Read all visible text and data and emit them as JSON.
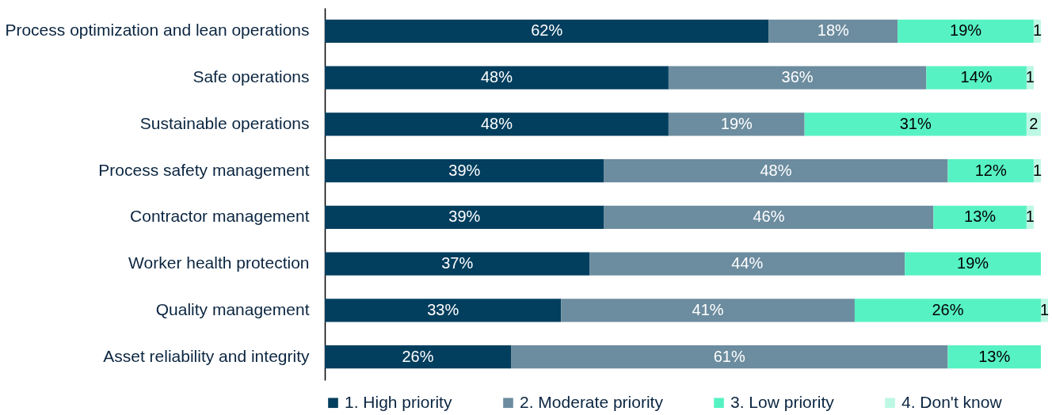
{
  "chart_data": {
    "type": "bar",
    "orientation": "horizontal",
    "stacked": true,
    "legend": "bottom",
    "categories": [
      "Process optimization and lean operations",
      "Safe operations",
      "Sustainable operations",
      "Process safety management",
      "Contractor management",
      "Worker health protection",
      "Quality management",
      "Asset reliability and integrity"
    ],
    "series": [
      {
        "name": "1. High priority",
        "color": "#023e5e",
        "values": [
          62,
          48,
          48,
          39,
          39,
          37,
          33,
          26
        ],
        "value_labels": [
          "62%",
          "48%",
          "48%",
          "39%",
          "39%",
          "37%",
          "33%",
          "26%"
        ]
      },
      {
        "name": "2. Moderate priority",
        "color": "#6c8c9f",
        "values": [
          18,
          36,
          19,
          48,
          46,
          44,
          41,
          61
        ],
        "value_labels": [
          "18%",
          "36%",
          "19%",
          "48%",
          "46%",
          "44%",
          "41%",
          "61%"
        ]
      },
      {
        "name": "3. Low priority",
        "color": "#57f2c3",
        "values": [
          19,
          14,
          31,
          12,
          13,
          19,
          26,
          13
        ],
        "value_labels": [
          "19%",
          "14%",
          "31%",
          "12%",
          "13%",
          "19%",
          "26%",
          "13%"
        ]
      },
      {
        "name": "4. Don't know",
        "color": "#bdf8e4",
        "values": [
          1,
          1,
          2,
          1,
          1,
          null,
          1,
          null
        ],
        "value_labels": [
          "1",
          "1",
          "2",
          "1",
          "1",
          null,
          "1",
          null
        ]
      }
    ]
  }
}
